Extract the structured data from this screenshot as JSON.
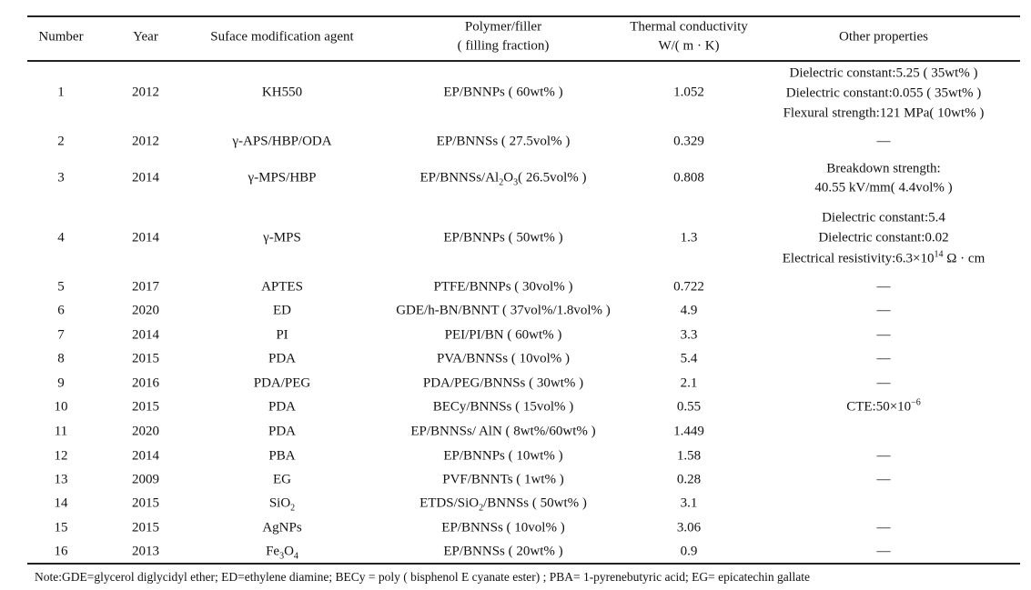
{
  "table": {
    "headers": {
      "number": "Number",
      "year": "Year",
      "agent": "Suface modification agent",
      "polymer": [
        "Polymer/filler",
        "( filling fraction)"
      ],
      "tc": [
        "Thermal conductivity",
        "W/( m · K)"
      ],
      "other": "Other properties"
    },
    "rows": [
      {
        "number": "1",
        "year": "2012",
        "agent": [
          {
            "t": "KH550"
          }
        ],
        "polymer": [
          {
            "t": "EP/BNNPs ( 60wt% )"
          }
        ],
        "tc": "1.052",
        "other": [
          [
            {
              "t": "Dielectric constant:5.25 ( 35wt% )"
            }
          ],
          [
            {
              "t": "Dielectric constant:0.055 ( 35wt% )"
            }
          ],
          [
            {
              "t": "Flexural strength:121 MPa( 10wt% )"
            }
          ]
        ]
      },
      {
        "number": "2",
        "year": "2012",
        "agent": [
          {
            "t": "γ-APS/HBP/ODA"
          }
        ],
        "polymer": [
          {
            "t": "EP/BNNSs ( 27.5vol% )"
          }
        ],
        "tc": "0.329",
        "other": [
          [
            {
              "t": "—"
            }
          ]
        ]
      },
      {
        "number": "3",
        "year": "2014",
        "agent": [
          {
            "t": "γ-MPS/HBP"
          }
        ],
        "polymer": [
          {
            "t": "EP/BNNSs/Al"
          },
          {
            "t": "2",
            "s": "sub"
          },
          {
            "t": "O"
          },
          {
            "t": "3",
            "s": "sub"
          },
          {
            "t": "( 26.5vol% )"
          }
        ],
        "tc": "0.808",
        "other": [
          [
            {
              "t": "Breakdown strength:"
            }
          ],
          [
            {
              "t": "40.55 kV/mm( 4.4vol% )"
            }
          ]
        ]
      },
      {
        "number": "4",
        "year": "2014",
        "agent": [
          {
            "t": "γ-MPS"
          }
        ],
        "polymer": [
          {
            "t": "EP/BNNPs ( 50wt% )"
          }
        ],
        "tc": "1.3",
        "other": [
          [
            {
              "t": "Dielectric constant:5.4"
            }
          ],
          [
            {
              "t": "Dielectric constant:0.02"
            }
          ],
          [
            {
              "t": "Electrical resistivity:6.3×10"
            },
            {
              "t": "14",
              "s": "sup"
            },
            {
              "t": " Ω · cm"
            }
          ]
        ]
      },
      {
        "number": "5",
        "year": "2017",
        "agent": [
          {
            "t": "APTES"
          }
        ],
        "polymer": [
          {
            "t": "PTFE/BNNPs ( 30vol% )"
          }
        ],
        "tc": "0.722",
        "other": [
          [
            {
              "t": "—"
            }
          ]
        ]
      },
      {
        "number": "6",
        "year": "2020",
        "agent": [
          {
            "t": "ED"
          }
        ],
        "polymer": [
          {
            "t": "GDE/h-BN/BNNT ( 37vol%/1.8vol% )"
          }
        ],
        "tc": "4.9",
        "other": [
          [
            {
              "t": "—"
            }
          ]
        ]
      },
      {
        "number": "7",
        "year": "2014",
        "agent": [
          {
            "t": "PI"
          }
        ],
        "polymer": [
          {
            "t": "PEI/PI/BN ( 60wt% )"
          }
        ],
        "tc": "3.3",
        "other": [
          [
            {
              "t": "—"
            }
          ]
        ]
      },
      {
        "number": "8",
        "year": "2015",
        "agent": [
          {
            "t": "PDA"
          }
        ],
        "polymer": [
          {
            "t": "PVA/BNNSs ( 10vol% )"
          }
        ],
        "tc": "5.4",
        "other": [
          [
            {
              "t": "—"
            }
          ]
        ]
      },
      {
        "number": "9",
        "year": "2016",
        "agent": [
          {
            "t": "PDA/PEG"
          }
        ],
        "polymer": [
          {
            "t": "PDA/PEG/BNNSs ( 30wt% )"
          }
        ],
        "tc": "2.1",
        "other": [
          [
            {
              "t": "—"
            }
          ]
        ]
      },
      {
        "number": "10",
        "year": "2015",
        "agent": [
          {
            "t": "PDA"
          }
        ],
        "polymer": [
          {
            "t": "BECy/BNNSs ( 15vol% )"
          }
        ],
        "tc": "0.55",
        "other": [
          [
            {
              "t": "CTE:50×10"
            },
            {
              "t": "−6",
              "s": "sup"
            }
          ]
        ]
      },
      {
        "number": "11",
        "year": "2020",
        "agent": [
          {
            "t": "PDA"
          }
        ],
        "polymer": [
          {
            "t": "EP/BNNSs/ AlN ( 8wt%/60wt% )"
          }
        ],
        "tc": "1.449",
        "other": []
      },
      {
        "number": "12",
        "year": "2014",
        "agent": [
          {
            "t": "PBA"
          }
        ],
        "polymer": [
          {
            "t": "EP/BNNPs ( 10wt% )"
          }
        ],
        "tc": "1.58",
        "other": [
          [
            {
              "t": "—"
            }
          ]
        ]
      },
      {
        "number": "13",
        "year": "2009",
        "agent": [
          {
            "t": "EG"
          }
        ],
        "polymer": [
          {
            "t": "PVF/BNNTs ( 1wt% )"
          }
        ],
        "tc": "0.28",
        "other": [
          [
            {
              "t": "—"
            }
          ]
        ]
      },
      {
        "number": "14",
        "year": "2015",
        "agent": [
          {
            "t": "SiO"
          },
          {
            "t": "2",
            "s": "sub"
          }
        ],
        "polymer": [
          {
            "t": "ETDS/SiO"
          },
          {
            "t": "2",
            "s": "sub"
          },
          {
            "t": "/BNNSs ( 50wt% )"
          }
        ],
        "tc": "3.1",
        "other": []
      },
      {
        "number": "15",
        "year": "2015",
        "agent": [
          {
            "t": "AgNPs"
          }
        ],
        "polymer": [
          {
            "t": "EP/BNNSs ( 10vol% )"
          }
        ],
        "tc": "3.06",
        "other": [
          [
            {
              "t": "—"
            }
          ]
        ]
      },
      {
        "number": "16",
        "year": "2013",
        "agent": [
          {
            "t": "Fe"
          },
          {
            "t": "3",
            "s": "sub"
          },
          {
            "t": "O"
          },
          {
            "t": "4",
            "s": "sub"
          }
        ],
        "polymer": [
          {
            "t": "EP/BNNSs ( 20wt% )"
          }
        ],
        "tc": "0.9",
        "other": [
          [
            {
              "t": "—"
            }
          ]
        ]
      }
    ],
    "note": "Note:GDE=glycerol diglycidyl ether; ED=ethylene diamine; BECy = poly ( bisphenol E cyanate ester) ; PBA= 1-pyrenebutyric acid; EG= epicatechin gallate"
  }
}
